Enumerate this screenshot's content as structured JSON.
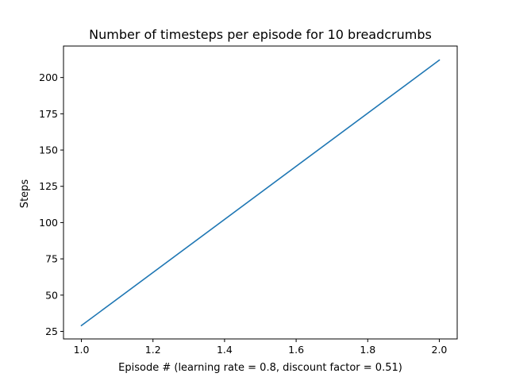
{
  "chart_data": {
    "type": "line",
    "title": "Number of timesteps per episode for 10 breadcrumbs",
    "xlabel": "Episode # (learning rate = 0.8, discount factor = 0.51)",
    "ylabel": "Steps",
    "xlim": [
      0.95,
      2.05
    ],
    "ylim": [
      19.8,
      221.7
    ],
    "xticks": [
      1.0,
      1.2,
      1.4,
      1.6,
      1.8,
      2.0
    ],
    "xtick_labels": [
      "1.0",
      "1.2",
      "1.4",
      "1.6",
      "1.8",
      "2.0"
    ],
    "yticks": [
      25,
      50,
      75,
      100,
      125,
      150,
      175,
      200
    ],
    "ytick_labels": [
      "25",
      "50",
      "75",
      "100",
      "125",
      "150",
      "175",
      "200"
    ],
    "grid": false,
    "series": [
      {
        "x": [
          1,
          2
        ],
        "y": [
          29,
          212
        ],
        "color": "#1f77b4"
      }
    ]
  }
}
